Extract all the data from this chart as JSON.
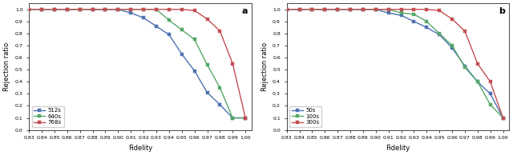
{
  "panel_a": {
    "label": "a",
    "xlabel": "Fidelity",
    "ylabel": "Rejection ratio",
    "xlim": [
      0.83,
      1.005
    ],
    "ylim": [
      0.0,
      1.05
    ],
    "xticks": [
      0.83,
      0.84,
      0.85,
      0.86,
      0.87,
      0.88,
      0.89,
      0.9,
      0.91,
      0.92,
      0.93,
      0.94,
      0.95,
      0.96,
      0.97,
      0.98,
      0.99,
      1.0
    ],
    "yticks": [
      0.0,
      0.1,
      0.2,
      0.3,
      0.4,
      0.5,
      0.6,
      0.7,
      0.8,
      0.9,
      1.0
    ],
    "series": [
      {
        "label": "512s",
        "color": "#4C72B0",
        "marker": "s",
        "x": [
          0.83,
          0.84,
          0.85,
          0.86,
          0.87,
          0.88,
          0.89,
          0.9,
          0.91,
          0.92,
          0.93,
          0.94,
          0.95,
          0.96,
          0.97,
          0.98,
          0.99,
          1.0
        ],
        "y": [
          1.0,
          1.0,
          1.0,
          1.0,
          1.0,
          1.0,
          1.0,
          1.0,
          0.97,
          0.93,
          0.86,
          0.79,
          0.63,
          0.49,
          0.31,
          0.21,
          0.1,
          0.1
        ]
      },
      {
        "label": "640s",
        "color": "#55A868",
        "marker": "s",
        "x": [
          0.83,
          0.84,
          0.85,
          0.86,
          0.87,
          0.88,
          0.89,
          0.9,
          0.91,
          0.92,
          0.93,
          0.94,
          0.95,
          0.96,
          0.97,
          0.98,
          0.99,
          1.0
        ],
        "y": [
          1.0,
          1.0,
          1.0,
          1.0,
          1.0,
          1.0,
          1.0,
          1.0,
          1.0,
          1.0,
          1.0,
          0.91,
          0.83,
          0.75,
          0.54,
          0.35,
          0.1,
          0.1
        ]
      },
      {
        "label": "768s",
        "color": "#C44E52",
        "marker": "s",
        "x": [
          0.83,
          0.84,
          0.85,
          0.86,
          0.87,
          0.88,
          0.89,
          0.9,
          0.91,
          0.92,
          0.93,
          0.94,
          0.95,
          0.96,
          0.97,
          0.98,
          0.99,
          1.0
        ],
        "y": [
          1.0,
          1.0,
          1.0,
          1.0,
          1.0,
          1.0,
          1.0,
          1.0,
          1.0,
          1.0,
          1.0,
          1.0,
          1.0,
          0.99,
          0.92,
          0.82,
          0.55,
          0.1
        ]
      }
    ]
  },
  "panel_b": {
    "label": "b",
    "xlabel": "Fidelity",
    "ylabel": "Rejection ratio",
    "xlim": [
      0.83,
      1.005
    ],
    "ylim": [
      0.0,
      1.05
    ],
    "xticks": [
      0.83,
      0.84,
      0.85,
      0.86,
      0.87,
      0.88,
      0.89,
      0.9,
      0.91,
      0.92,
      0.93,
      0.94,
      0.95,
      0.96,
      0.97,
      0.98,
      0.99,
      1.0
    ],
    "yticks": [
      0.0,
      0.1,
      0.2,
      0.3,
      0.4,
      0.5,
      0.6,
      0.7,
      0.8,
      0.9,
      1.0
    ],
    "series": [
      {
        "label": "50s",
        "color": "#4C72B0",
        "marker": "s",
        "x": [
          0.83,
          0.84,
          0.85,
          0.86,
          0.87,
          0.88,
          0.89,
          0.9,
          0.91,
          0.92,
          0.93,
          0.94,
          0.95,
          0.96,
          0.97,
          0.98,
          0.99,
          1.0
        ],
        "y": [
          1.0,
          1.0,
          1.0,
          1.0,
          1.0,
          1.0,
          1.0,
          1.0,
          0.97,
          0.95,
          0.9,
          0.85,
          0.79,
          0.68,
          0.53,
          0.4,
          0.3,
          0.1
        ]
      },
      {
        "label": "100s",
        "color": "#55A868",
        "marker": "s",
        "x": [
          0.83,
          0.84,
          0.85,
          0.86,
          0.87,
          0.88,
          0.89,
          0.9,
          0.91,
          0.92,
          0.93,
          0.94,
          0.95,
          0.96,
          0.97,
          0.98,
          0.99,
          1.0
        ],
        "y": [
          1.0,
          1.0,
          1.0,
          1.0,
          1.0,
          1.0,
          1.0,
          1.0,
          1.0,
          0.97,
          0.96,
          0.9,
          0.8,
          0.7,
          0.52,
          0.4,
          0.21,
          0.1
        ]
      },
      {
        "label": "300s",
        "color": "#C44E52",
        "marker": "s",
        "x": [
          0.83,
          0.84,
          0.85,
          0.86,
          0.87,
          0.88,
          0.89,
          0.9,
          0.91,
          0.92,
          0.93,
          0.94,
          0.95,
          0.96,
          0.97,
          0.98,
          0.99,
          1.0
        ],
        "y": [
          1.0,
          1.0,
          1.0,
          1.0,
          1.0,
          1.0,
          1.0,
          1.0,
          1.0,
          1.0,
          1.0,
          1.0,
          0.99,
          0.92,
          0.82,
          0.55,
          0.4,
          0.1
        ]
      }
    ]
  },
  "marker_size": 2.5,
  "line_width": 1.0,
  "tick_fontsize": 4.5,
  "label_fontsize": 6,
  "panel_label_fontsize": 8,
  "legend_fontsize": 5,
  "bg_color": "#ffffff"
}
